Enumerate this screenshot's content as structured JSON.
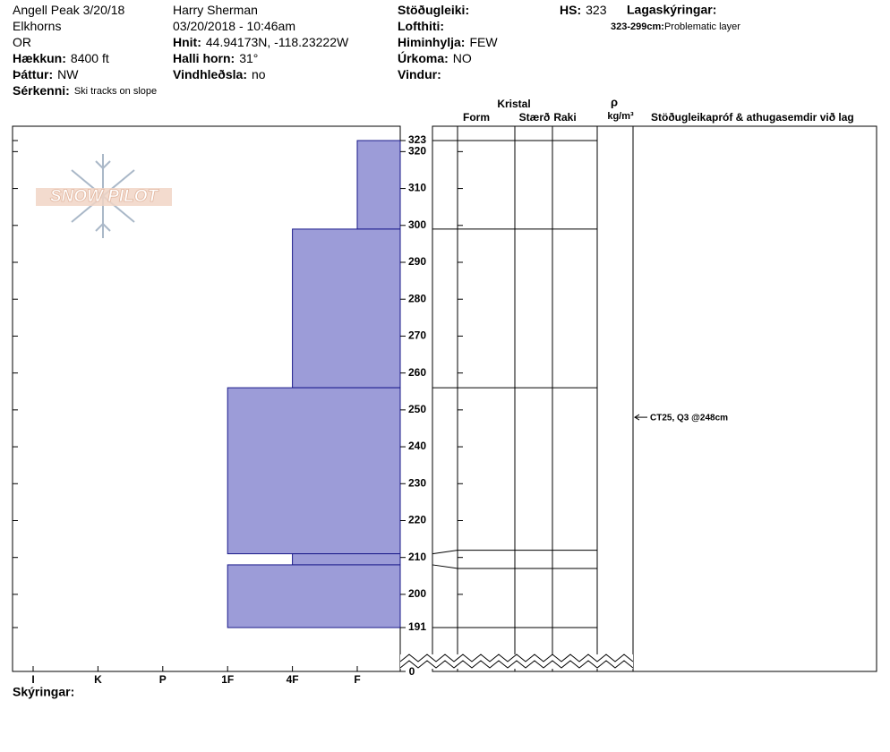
{
  "header": {
    "column1": [
      {
        "text": "Angell Peak 3/20/18"
      },
      {
        "text": "Elkhorns"
      },
      {
        "text": "OR"
      },
      {
        "label": "Hækkun:",
        "value": "8400 ft"
      },
      {
        "label": "Þáttur:",
        "value": "NW"
      }
    ],
    "remarks": {
      "label": "Sérkenni:",
      "value": "Ski tracks on slope"
    },
    "column2": [
      {
        "text": "Harry Sherman"
      },
      {
        "text": "03/20/2018 - 10:46am"
      },
      {
        "label": "Hnit:",
        "value": "44.94173N, -118.23222W"
      },
      {
        "label": "Halli horn:",
        "value": "31°"
      },
      {
        "label": "Vindhleðsla:",
        "value": "no"
      }
    ],
    "column3": [
      {
        "label": "Stöðugleiki:"
      },
      {
        "label": "Lofthiti:"
      },
      {
        "label": "Himinhylja:",
        "value": "FEW"
      },
      {
        "label": "Úrkoma:",
        "value": "NO"
      },
      {
        "label": "Vindur:"
      }
    ],
    "hs": {
      "label": "HS:",
      "value": 323
    },
    "legend": {
      "title": "Lagaskýringar:",
      "items": [
        {
          "range": "323-299cm:",
          "text": "Problematic layer"
        }
      ]
    }
  },
  "logo": "SNOW PILOT",
  "chart_data": {
    "type": "snow-profile",
    "hardness_scale": [
      "I",
      "K",
      "P",
      "1F",
      "4F",
      "F"
    ],
    "ylim": [
      191,
      323
    ],
    "yticks": [
      191,
      200,
      210,
      220,
      230,
      240,
      250,
      260,
      270,
      280,
      290,
      300,
      310,
      320,
      323
    ],
    "break_tick": 0,
    "layers": [
      {
        "top": 323,
        "bottom": 299,
        "hardness": "F"
      },
      {
        "top": 299,
        "bottom": 256,
        "hardness": "4F"
      },
      {
        "top": 256,
        "bottom": 211,
        "hardness": "1F"
      },
      {
        "top": 211,
        "bottom": 208,
        "hardness": "4F"
      },
      {
        "top": 208,
        "bottom": 191,
        "hardness": "1F"
      }
    ],
    "color": "#9c9cd8",
    "columns": {
      "crystal": "Kristal",
      "form": "Form",
      "size": "Stærð",
      "moisture": "Raki",
      "rho": "ρ",
      "density_unit": "kg/m³",
      "tests": "Stöðugleikapróf & athugasemdir við lag"
    },
    "tests": [
      {
        "label": "CT25, Q3 @248cm",
        "height": 248
      }
    ],
    "footer": "Skýringar:"
  }
}
